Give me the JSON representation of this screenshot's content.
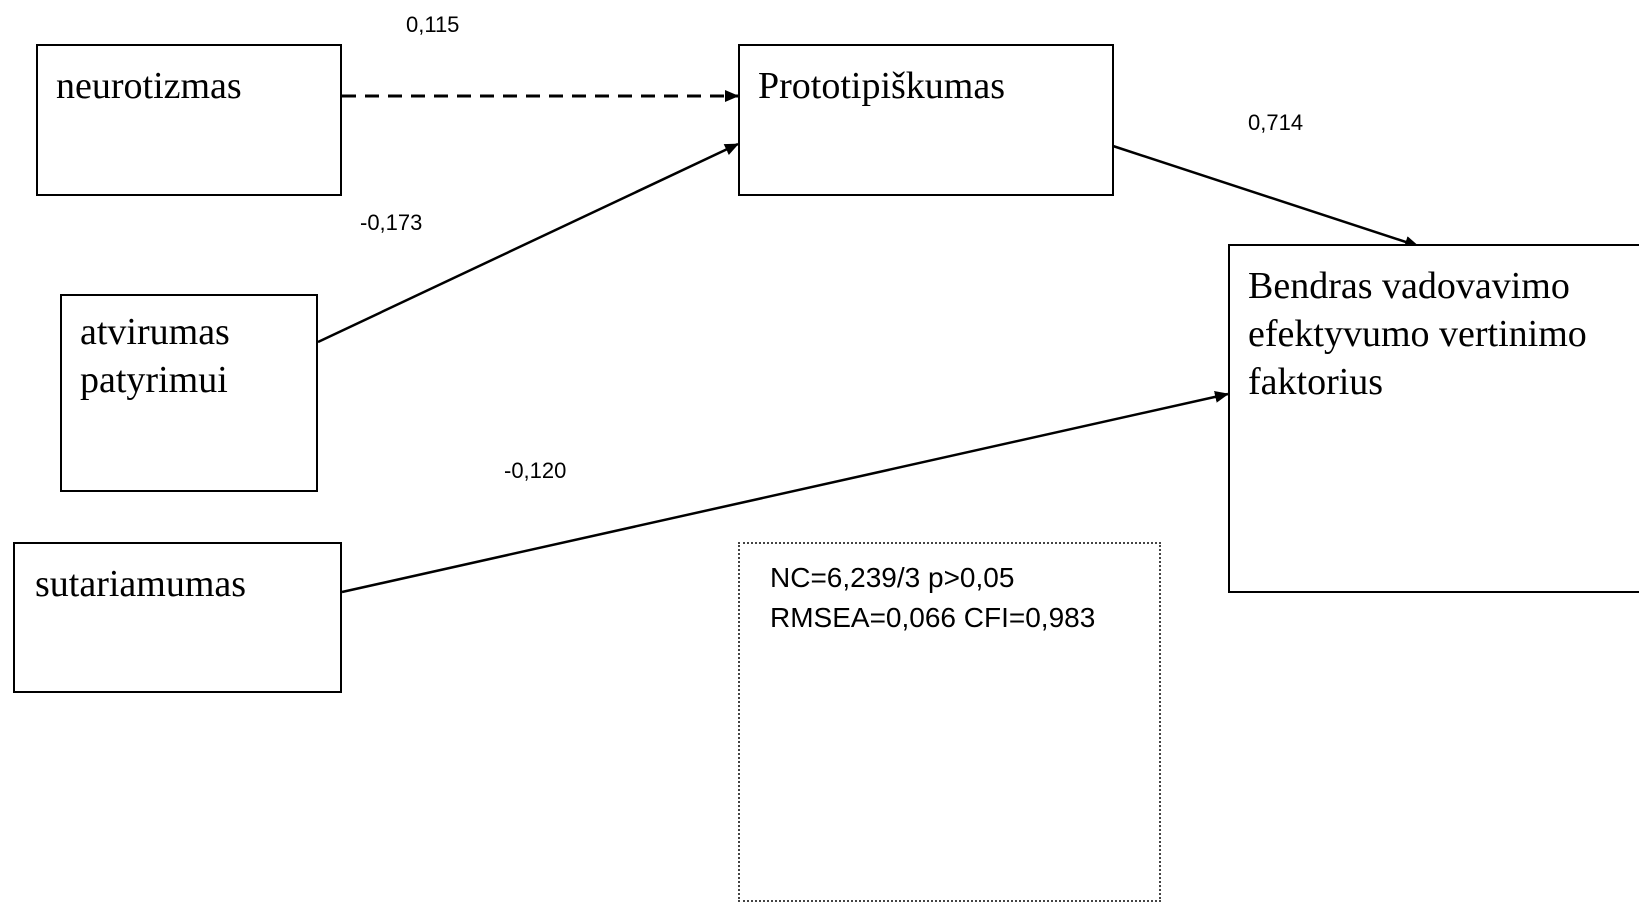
{
  "nodes": {
    "neurotizmas": "neurotizmas",
    "prototipiskumas": "Prototipiškumas",
    "atvirumas_line1": "atvirumas",
    "atvirumas_line2": "patyrimui",
    "sutariamumas": "sutariamumas",
    "bendras_line1": "Bendras vadovavimo",
    "bendras_line2": "efektyvumo vertinimo",
    "bendras_line3": "faktorius"
  },
  "paths": {
    "neurotizmas_to_prototipiskumas": "0,115",
    "atvirumas_to_prototipiskumas": "-0,173",
    "prototipiskumas_to_bendras": "0,714",
    "sutariamumas_to_bendras": "-0,120"
  },
  "fit_indices": {
    "line1": "NC=6,239/3 p>0,05",
    "line2": "RMSEA=0,066 CFI=0,983"
  }
}
